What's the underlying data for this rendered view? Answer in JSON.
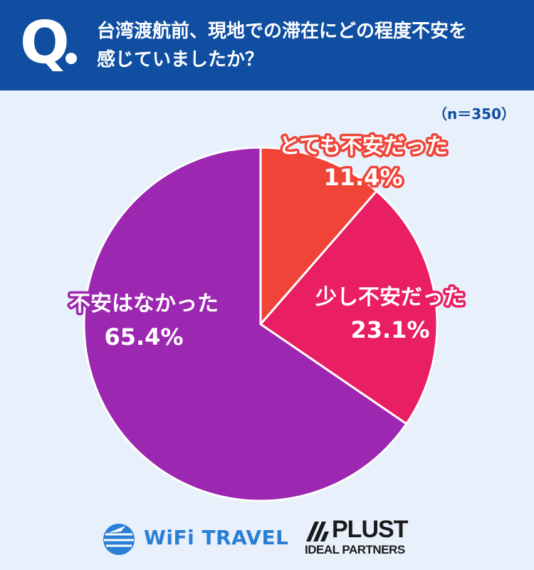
{
  "header": {
    "q_mark": "Q",
    "question_line1": "台湾渡航前、現地での滞在にどの程度不安を",
    "question_line2": "感じていましたか？"
  },
  "sample_size": "（n＝350）",
  "chart_data": {
    "type": "pie",
    "slices": [
      {
        "label": "とても不安だった",
        "value": 11.4,
        "display": "11.4%",
        "color": "#f04438"
      },
      {
        "label": "少し不安だった",
        "value": 23.1,
        "display": "23.1%",
        "color": "#e91e63"
      },
      {
        "label": "不安はなかった",
        "value": 65.4,
        "display": "65.4%",
        "color": "#9c27b0"
      }
    ],
    "start": "12 o'clock",
    "direction": "clockwise"
  },
  "logos": {
    "wifi_travel": "WiFi TRAVEL",
    "plust": "PLUST",
    "plust_sub": "IDEAL PARTNERS"
  },
  "colors": {
    "header_bg": "#0f4ea1",
    "page_bg": "#e8f0fb",
    "label_text": "#ffffff"
  }
}
